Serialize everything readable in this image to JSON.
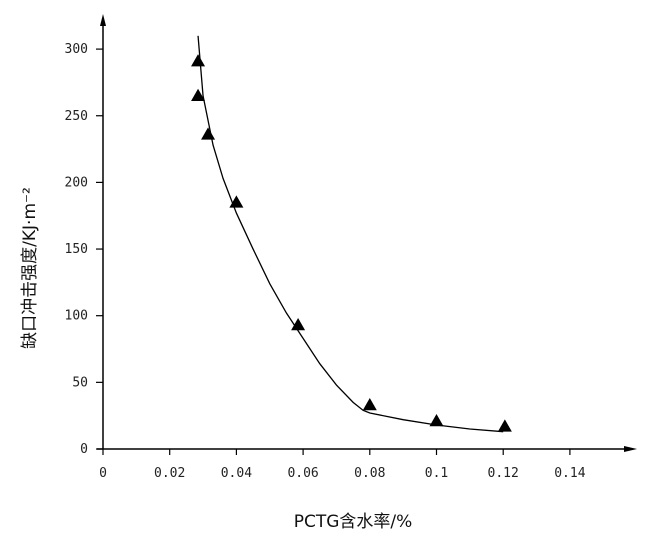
{
  "chart_data": {
    "type": "scatter",
    "xlabel": "PCTG含水率/%",
    "ylabel": "缺口冲击强度/KJ·m⁻²",
    "xlim": [
      0,
      0.155
    ],
    "ylim": [
      0,
      315
    ],
    "x_ticks": [
      0,
      0.02,
      0.04,
      0.06,
      0.08,
      0.1,
      0.12,
      0.14
    ],
    "x_tick_labels": [
      "0",
      "0.02",
      "0.04",
      "0.06",
      "0.08",
      "0.1",
      "0.12",
      "0.14"
    ],
    "y_ticks": [
      0,
      50,
      100,
      150,
      200,
      250,
      300
    ],
    "y_tick_labels": [
      "0",
      "50",
      "100",
      "150",
      "200",
      "250",
      "300"
    ],
    "grid": false,
    "points": [
      {
        "x": 0.0285,
        "y": 291
      },
      {
        "x": 0.0285,
        "y": 265
      },
      {
        "x": 0.0315,
        "y": 236
      },
      {
        "x": 0.04,
        "y": 185
      },
      {
        "x": 0.0585,
        "y": 93
      },
      {
        "x": 0.08,
        "y": 33
      },
      {
        "x": 0.1,
        "y": 21
      },
      {
        "x": 0.1205,
        "y": 17
      }
    ],
    "fit_curve": [
      [
        0.0285,
        310
      ],
      [
        0.03,
        265
      ],
      [
        0.033,
        228
      ],
      [
        0.036,
        203
      ],
      [
        0.04,
        177
      ],
      [
        0.045,
        150
      ],
      [
        0.05,
        124
      ],
      [
        0.055,
        102
      ],
      [
        0.06,
        83
      ],
      [
        0.065,
        64
      ],
      [
        0.07,
        48
      ],
      [
        0.075,
        35
      ],
      [
        0.078,
        29
      ],
      [
        0.08,
        27
      ],
      [
        0.09,
        22
      ],
      [
        0.1,
        18
      ],
      [
        0.11,
        15
      ],
      [
        0.12,
        13
      ]
    ]
  }
}
